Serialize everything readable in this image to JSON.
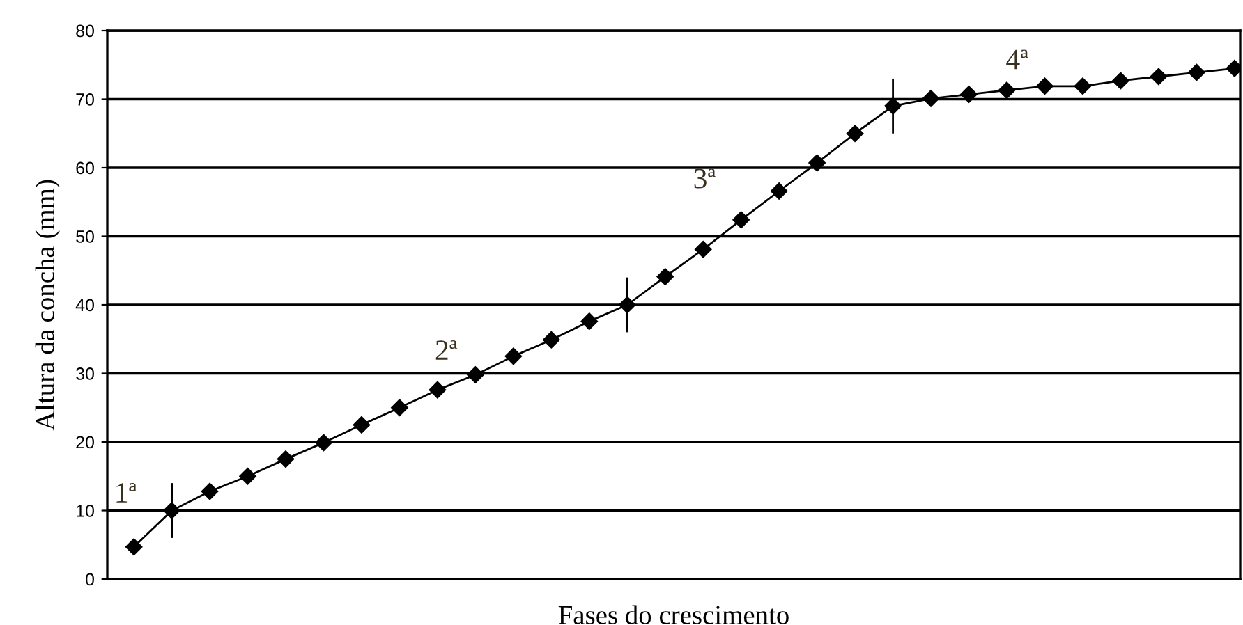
{
  "chart_data": {
    "type": "line",
    "xlabel": "Fases do crescimento",
    "ylabel": "Altura da concha (mm)",
    "categories": [
      null,
      null,
      null,
      null,
      null,
      null,
      null,
      null,
      null,
      null,
      null,
      null,
      null,
      null,
      null,
      null,
      null,
      null,
      null,
      null,
      null,
      null,
      null,
      null,
      null,
      null,
      null,
      null,
      null,
      null
    ],
    "series": [
      {
        "color": "#000000",
        "values": [
          4.7,
          10,
          12.8,
          15,
          17.5,
          19.9,
          22.5,
          25,
          27.6,
          29.8,
          32.5,
          34.9,
          37.6,
          40,
          44.1,
          48.1,
          52.4,
          56.6,
          60.7,
          65,
          69,
          70.1,
          70.7,
          71.3,
          71.9,
          71.9,
          72.7,
          73.3,
          73.9,
          74.5
        ],
        "errors": [
          null,
          4,
          null,
          null,
          null,
          null,
          null,
          null,
          null,
          null,
          null,
          null,
          null,
          4,
          null,
          null,
          null,
          null,
          null,
          null,
          4,
          null,
          null,
          null,
          null,
          null,
          null,
          null,
          null,
          null
        ]
      }
    ],
    "ylim": [
      0,
      80
    ],
    "yticks": [
      0,
      10,
      20,
      30,
      40,
      50,
      60,
      70,
      80
    ],
    "grid": "y",
    "marker": "diamond",
    "line_style": "solid",
    "annotations": [
      "1ª",
      "2ª",
      "3ª",
      "4ª"
    ]
  }
}
